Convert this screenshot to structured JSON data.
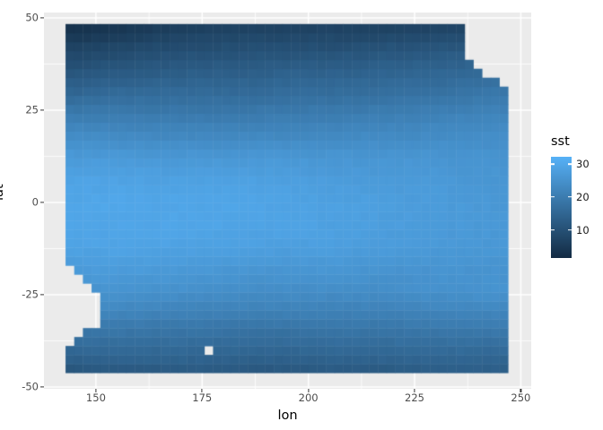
{
  "figure": {
    "background": "#FFFFFF"
  },
  "panel": {
    "background": "#EBEBEB",
    "grid_color": "#FFFFFF",
    "axis_tick_color": "#333333",
    "tick_label_color": "#4D4D4D"
  },
  "axes": {
    "x": {
      "title": "lon",
      "ticks": [
        150,
        175,
        200,
        225,
        250
      ],
      "minor_ticks": [
        162.5,
        187.5,
        212.5,
        237.5
      ]
    },
    "y": {
      "title": "lat",
      "ticks": [
        50,
        25,
        0,
        -25,
        -50
      ],
      "minor_ticks": [
        37.5,
        12.5,
        -12.5,
        -37.5
      ]
    }
  },
  "legend": {
    "title": "sst",
    "tick_values": [
      30,
      20,
      10
    ],
    "vmin": 1.5,
    "vmax": 32.2,
    "color_low": "#132B43",
    "color_high": "#56B1F7"
  },
  "chart_data": {
    "type": "heatmap",
    "title": "",
    "xlabel": "lon",
    "ylabel": "lat",
    "fill_label": "sst",
    "x_domain": [
      137.77,
      252.45
    ],
    "y_domain": [
      -50.49,
      51.46
    ],
    "x_major_gridlines": [
      150,
      175,
      200,
      225,
      250
    ],
    "y_major_gridlines": [
      50,
      25,
      0,
      -25,
      -50
    ],
    "x_minor_gridlines": [
      162.5,
      187.5,
      212.5,
      237.5
    ],
    "y_minor_gridlines": [
      37.5,
      12.5,
      -12.5,
      -37.5
    ],
    "data_extent": {
      "lon": [
        142.85,
        247.0
      ],
      "lat": [
        -46.15,
        48.35
      ]
    },
    "resolution": {
      "ncols": 51,
      "nrows": 39
    },
    "noise_amplitude": 0.65,
    "sst_grid": {
      "lon_samples": [
        145,
        155,
        165,
        175,
        185,
        195,
        205,
        215,
        225,
        235,
        245
      ],
      "lat_samples": [
        48,
        42,
        36,
        30,
        24,
        18,
        12,
        6,
        0,
        -6,
        -12,
        -18,
        -24,
        -30,
        -36,
        -42,
        -46
      ],
      "values": [
        [
          2.5,
          3.5,
          5.0,
          6.0,
          6.5,
          6.5,
          6.5,
          6.5,
          6.5,
          7.0,
          7.0
        ],
        [
          7.0,
          8.0,
          9.0,
          9.5,
          10.0,
          10.0,
          10.0,
          10.5,
          11.0,
          11.5,
          12.0
        ],
        [
          11.0,
          12.0,
          12.5,
          13.0,
          13.0,
          13.5,
          13.5,
          14.0,
          14.5,
          15.0,
          16.0
        ],
        [
          15.0,
          16.0,
          16.0,
          16.0,
          16.0,
          16.5,
          16.5,
          17.0,
          17.5,
          18.0,
          19.0
        ],
        [
          20.0,
          20.0,
          19.5,
          19.5,
          19.5,
          20.0,
          20.0,
          20.5,
          21.0,
          21.5,
          22.0
        ],
        [
          24.0,
          23.5,
          23.0,
          23.0,
          23.0,
          23.0,
          23.0,
          23.5,
          23.5,
          24.0,
          24.0
        ],
        [
          27.0,
          27.0,
          26.5,
          26.5,
          26.5,
          26.5,
          26.0,
          26.0,
          26.0,
          25.5,
          25.5
        ],
        [
          29.0,
          29.0,
          28.5,
          28.5,
          28.5,
          28.0,
          27.5,
          27.0,
          27.0,
          26.5,
          26.0
        ],
        [
          29.5,
          30.0,
          29.5,
          29.5,
          29.5,
          29.0,
          28.5,
          28.0,
          27.5,
          27.0,
          26.5
        ],
        [
          29.5,
          29.5,
          29.5,
          29.5,
          29.0,
          29.0,
          28.5,
          28.0,
          27.5,
          27.0,
          26.5
        ],
        [
          29.0,
          29.0,
          29.0,
          28.5,
          28.5,
          28.0,
          28.0,
          27.5,
          27.0,
          26.5,
          26.5
        ],
        [
          27.0,
          27.5,
          27.0,
          26.5,
          26.0,
          26.0,
          26.0,
          25.5,
          25.5,
          25.5,
          25.5
        ],
        [
          25.0,
          25.5,
          25.0,
          24.5,
          24.0,
          24.0,
          24.0,
          24.0,
          24.5,
          25.0,
          25.5
        ],
        [
          22.0,
          22.0,
          21.5,
          21.0,
          21.0,
          21.0,
          21.0,
          21.0,
          21.5,
          22.0,
          22.0
        ],
        [
          18.0,
          18.0,
          17.5,
          17.5,
          17.0,
          17.0,
          17.5,
          17.5,
          18.0,
          18.0,
          18.5
        ],
        [
          14.0,
          14.5,
          14.5,
          14.5,
          14.0,
          14.0,
          14.5,
          14.5,
          15.0,
          15.0,
          15.0
        ],
        [
          11.0,
          11.5,
          12.0,
          12.0,
          11.5,
          11.5,
          12.0,
          12.0,
          12.5,
          13.0,
          13.0
        ]
      ]
    },
    "na_regions": [
      {
        "lon": [
          236.8,
          247.1
        ],
        "lat": [
          38.5,
          48.5
        ]
      },
      {
        "lon": [
          238.9,
          247.1
        ],
        "lat": [
          36.1,
          38.5
        ]
      },
      {
        "lon": [
          240.8,
          247.1
        ],
        "lat": [
          33.7,
          36.1
        ]
      },
      {
        "lon": [
          244.9,
          247.1
        ],
        "lat": [
          31.3,
          33.7
        ]
      },
      {
        "lon": [
          142.8,
          144.9
        ],
        "lat": [
          -38.8,
          -16.2
        ]
      },
      {
        "lon": [
          144.9,
          146.8
        ],
        "lat": [
          -36.7,
          -19.5
        ]
      },
      {
        "lon": [
          146.8,
          148.9
        ],
        "lat": [
          -34.5,
          -22.2
        ]
      },
      {
        "lon": [
          148.9,
          150.9
        ],
        "lat": [
          -33.3,
          -24.5
        ]
      },
      {
        "lon": [
          174.9,
          177.1
        ],
        "lat": [
          -40.9,
          -38.5
        ]
      }
    ]
  }
}
